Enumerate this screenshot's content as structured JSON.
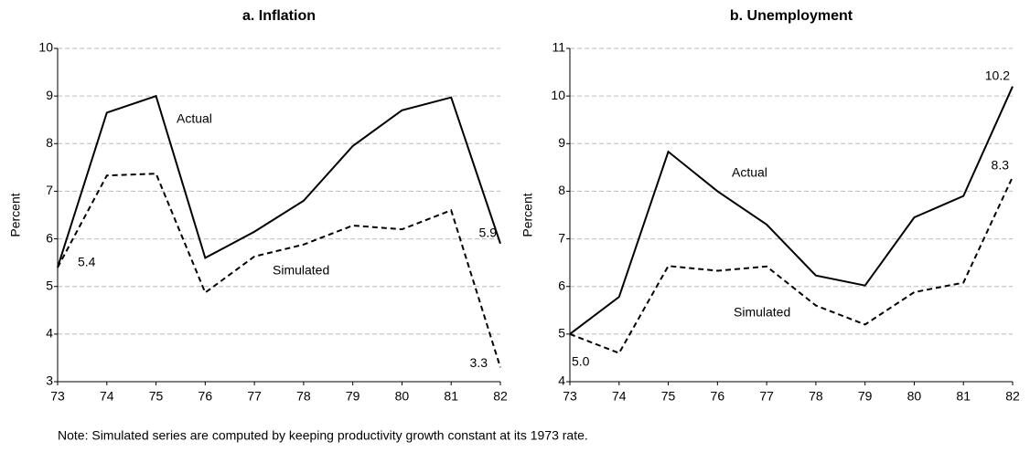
{
  "chart_data": [
    {
      "type": "line",
      "title": "a.  Inflation",
      "y_label": "Percent",
      "categories": [
        "73",
        "74",
        "75",
        "76",
        "77",
        "78",
        "79",
        "80",
        "81",
        "82"
      ],
      "series": [
        {
          "name": "Actual",
          "color": "#000000",
          "dash": false,
          "values": [
            5.4,
            8.65,
            9.0,
            5.6,
            6.15,
            6.8,
            7.95,
            8.7,
            8.97,
            5.9
          ],
          "value_labels": [
            null,
            null,
            null,
            null,
            null,
            null,
            null,
            null,
            null,
            "5.9"
          ]
        },
        {
          "name": "Simulated",
          "color": "#000000",
          "dash": true,
          "values": [
            5.4,
            7.33,
            7.37,
            4.87,
            5.63,
            5.88,
            6.28,
            6.2,
            6.6,
            3.3
          ],
          "value_labels": [
            "5.4",
            null,
            null,
            null,
            null,
            null,
            null,
            null,
            null,
            "3.3"
          ]
        }
      ],
      "ylim": [
        3,
        10
      ],
      "yticks": [
        3,
        4,
        5,
        6,
        7,
        8,
        9,
        10
      ],
      "grid": true
    },
    {
      "type": "line",
      "title": "b.  Unemployment",
      "y_label": "Percent",
      "categories": [
        "73",
        "74",
        "75",
        "76",
        "77",
        "78",
        "79",
        "80",
        "81",
        "82"
      ],
      "series": [
        {
          "name": "Actual",
          "color": "#000000",
          "dash": false,
          "values": [
            5,
            5.78,
            8.83,
            8.0,
            7.3,
            6.23,
            6.02,
            7.45,
            7.9,
            10.2
          ],
          "value_labels": [
            null,
            null,
            null,
            null,
            null,
            null,
            null,
            null,
            null,
            "10.2"
          ]
        },
        {
          "name": "Simulated",
          "color": "#000000",
          "dash": true,
          "values": [
            5,
            4.6,
            6.43,
            6.33,
            6.42,
            5.6,
            5.2,
            5.88,
            6.08,
            8.3
          ],
          "value_labels": [
            "5.0",
            null,
            null,
            null,
            null,
            null,
            null,
            null,
            null,
            "8.3"
          ]
        }
      ],
      "ylim": [
        4,
        11
      ],
      "yticks": [
        4,
        5,
        6,
        7,
        8,
        9,
        10,
        11
      ],
      "grid": true
    }
  ],
  "note": "Note: Simulated series are computed by keeping productivity growth constant at its 1973 rate."
}
